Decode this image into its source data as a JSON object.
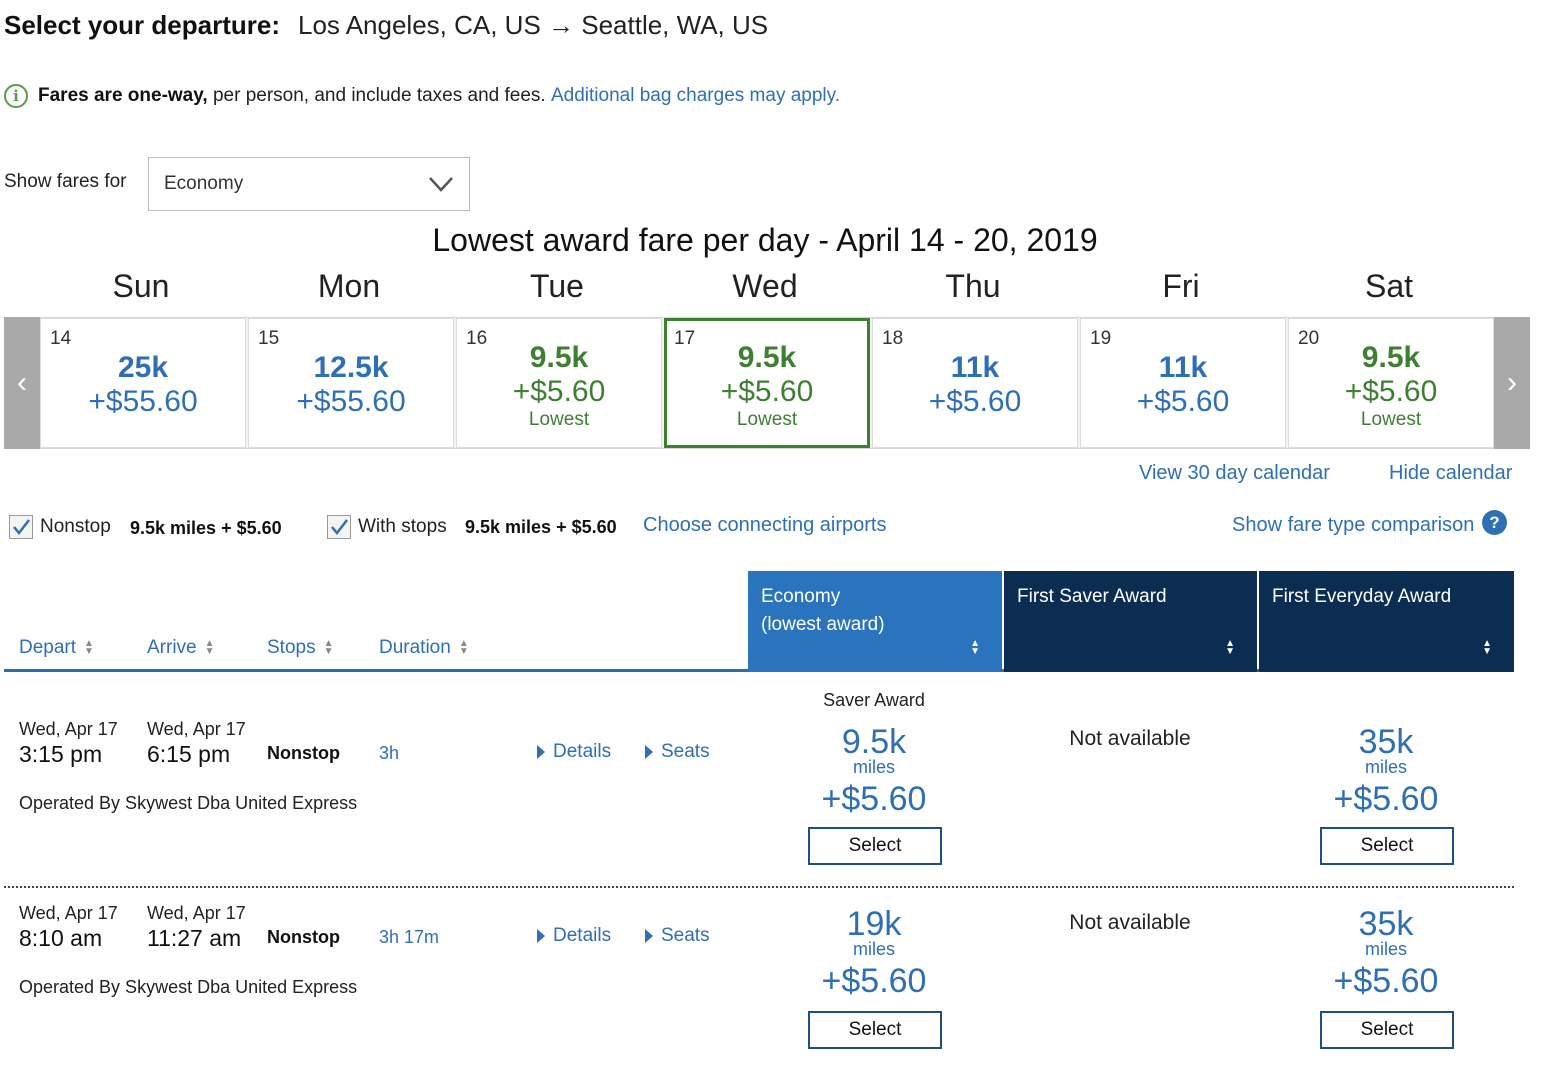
{
  "header": {
    "label": "Select your departure:",
    "route": "Los Angeles, CA, US → Seattle, WA, US"
  },
  "info": {
    "icon": "info-icon",
    "bold": "Fares are one-way,",
    "text": " per person, and include taxes and fees. ",
    "link": "Additional bag charges may apply."
  },
  "fares_filter": {
    "label": "Show fares for",
    "selected": "Economy"
  },
  "calendar": {
    "title": "Lowest award fare per day - April 14 - 20, 2019",
    "prev": "‹",
    "next": "›",
    "days": [
      {
        "name": "Sun",
        "num": "14",
        "miles": "25k",
        "fee": "+$55.60",
        "tag": "",
        "lowest": false
      },
      {
        "name": "Mon",
        "num": "15",
        "miles": "12.5k",
        "fee": "+$55.60",
        "tag": "",
        "lowest": false
      },
      {
        "name": "Tue",
        "num": "16",
        "miles": "9.5k",
        "fee": "+$5.60",
        "tag": "Lowest",
        "lowest": true
      },
      {
        "name": "Wed",
        "num": "17",
        "miles": "9.5k",
        "fee": "+$5.60",
        "tag": "Lowest",
        "lowest": true
      },
      {
        "name": "Thu",
        "num": "18",
        "miles": "11k",
        "fee": "+$5.60",
        "tag": "",
        "lowest": false
      },
      {
        "name": "Fri",
        "num": "19",
        "miles": "11k",
        "fee": "+$5.60",
        "tag": "",
        "lowest": false
      },
      {
        "name": "Sat",
        "num": "20",
        "miles": "9.5k",
        "fee": "+$5.60",
        "tag": "Lowest",
        "lowest": true
      }
    ],
    "view30": "View 30 day calendar",
    "hide": "Hide calendar"
  },
  "filters": {
    "nonstop_label": "Nonstop",
    "nonstop_value": "9.5k miles + $5.60",
    "stops_label": "With stops",
    "stops_value": "9.5k miles + $5.60",
    "connect_link": "Choose connecting airports",
    "compare_link": "Show fare type comparison",
    "help": "?"
  },
  "table": {
    "columns": [
      "Depart",
      "Arrive",
      "Stops",
      "Duration"
    ],
    "fare_columns": [
      {
        "line1": "Economy",
        "line2": "(lowest award)",
        "color": "#2a73bd"
      },
      {
        "line1": "First Saver Award",
        "line2": "",
        "color": "#0b2d52"
      },
      {
        "line1": "First Everyday Award",
        "line2": "",
        "color": "#0b2d52"
      }
    ]
  },
  "flights": [
    {
      "dep_date": "Wed, Apr 17",
      "dep_time": "3:15 pm",
      "arr_date": "Wed, Apr 17",
      "arr_time": "6:15 pm",
      "stops": "Nonstop",
      "duration": "3h",
      "details": "Details",
      "seats": "Seats",
      "operator": "Operated By Skywest Dba United Express",
      "economy_label": "Saver Award",
      "economy_miles": "9.5k",
      "economy_unit": "miles",
      "economy_fee": "+$5.60",
      "first_saver": "Not available",
      "first_everyday_miles": "35k",
      "first_everyday_unit": "miles",
      "first_everyday_fee": "+$5.60",
      "select": "Select"
    },
    {
      "dep_date": "Wed, Apr 17",
      "dep_time": "8:10 am",
      "arr_date": "Wed, Apr 17",
      "arr_time": "11:27 am",
      "stops": "Nonstop",
      "duration": "3h 17m",
      "details": "Details",
      "seats": "Seats",
      "operator": "Operated By Skywest Dba United Express",
      "economy_label": "",
      "economy_miles": "19k",
      "economy_unit": "miles",
      "economy_fee": "+$5.60",
      "first_saver": "Not available",
      "first_everyday_miles": "35k",
      "first_everyday_unit": "miles",
      "first_everyday_fee": "+$5.60",
      "select": "Select"
    }
  ]
}
